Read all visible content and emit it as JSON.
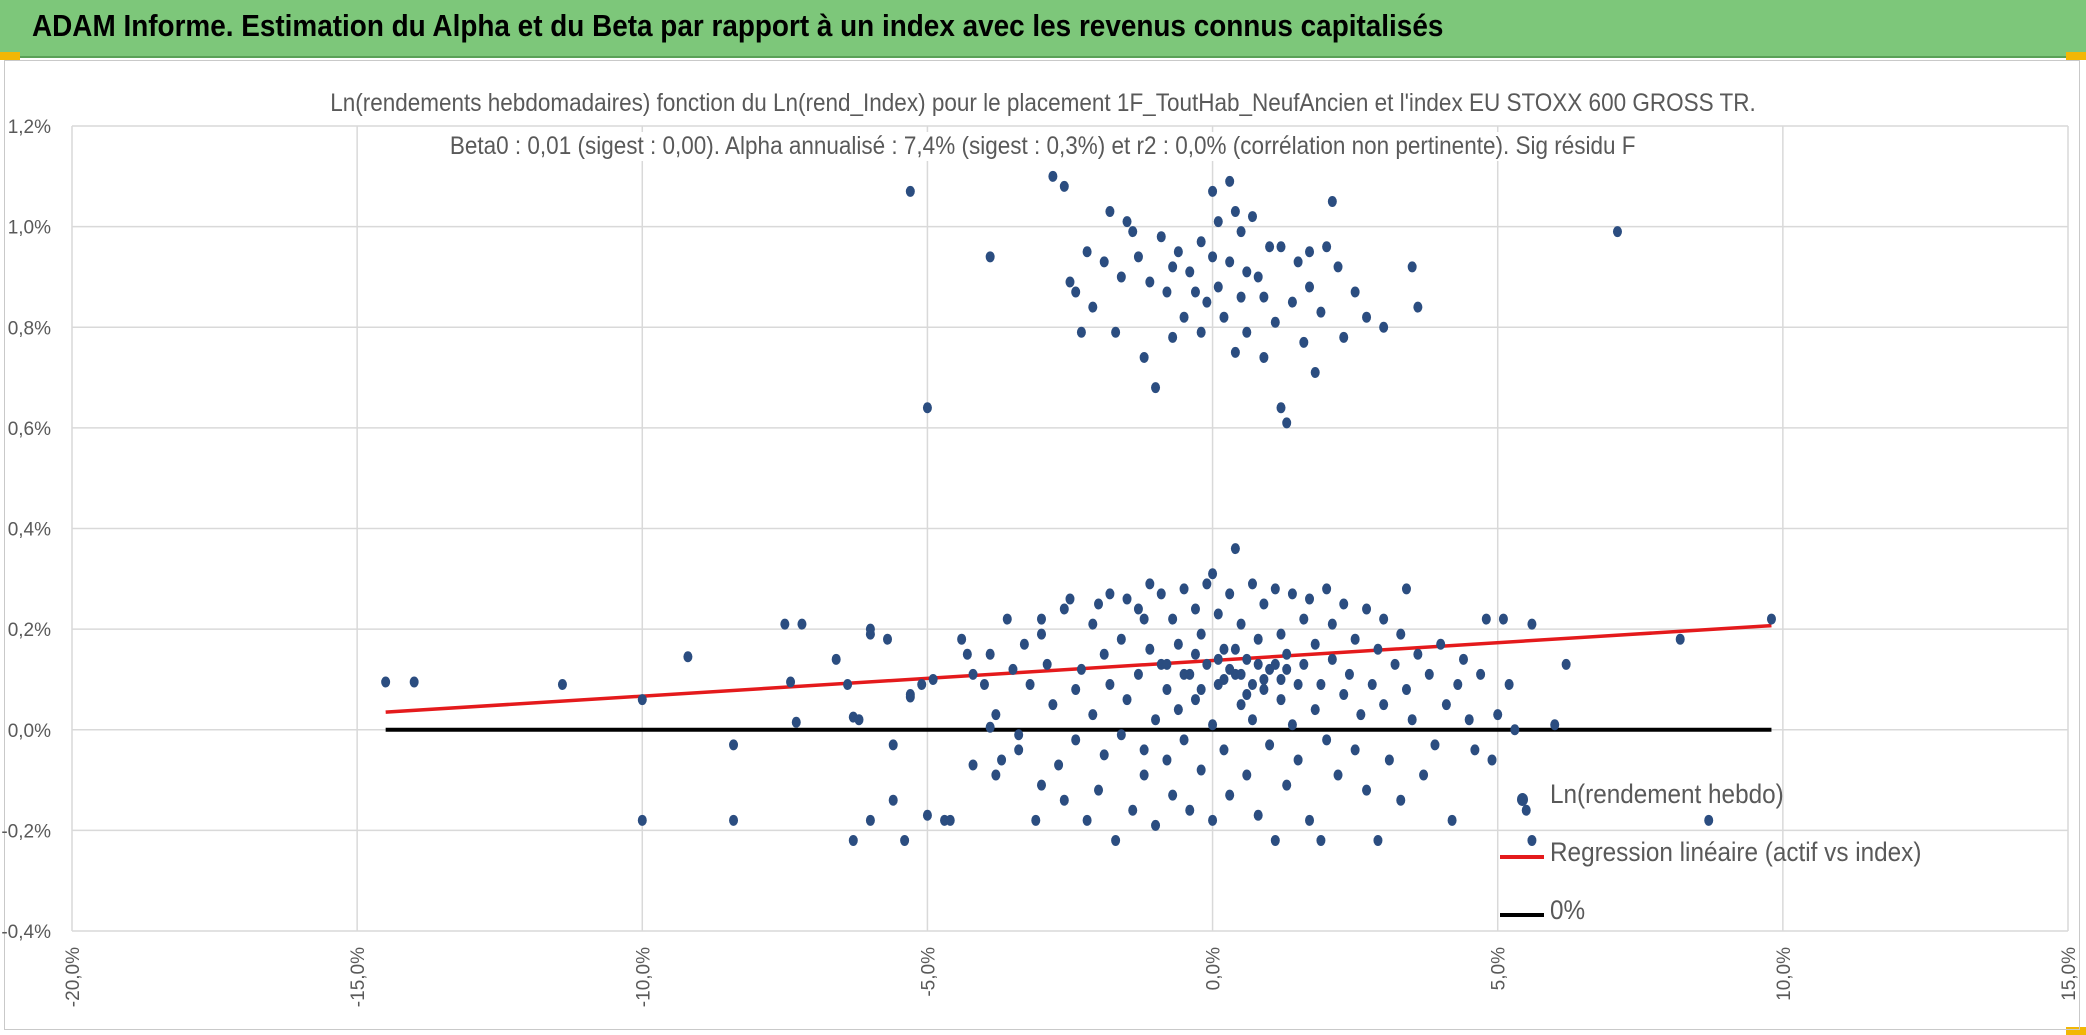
{
  "header": {
    "title": "ADAM Informe. Estimation du Alpha et du Beta par rapport à un index avec les revenus connus capitalisés"
  },
  "colors": {
    "header_bg": "#7dc77a",
    "scatter": "#2b4d80",
    "regression": "#e41a1c",
    "zero_line": "#000000",
    "grid": "#d9d9d9",
    "text": "#595959"
  },
  "chart_data": {
    "type": "scatter",
    "title": "Ln(rendements hebdomadaires) fonction du Ln(rend_Index) pour le placement 1F_ToutHab_NeufAncien et l'index EU STOXX 600 GROSS TR.",
    "subtitle": "Beta0 : 0,01 (sigest : 0,00). Alpha annualisé : 7,4% (sigest : 0,3%) et r2 : 0,0% (corrélation non pertinente). Sig résidu F",
    "xlim": [
      -0.2,
      0.15
    ],
    "ylim": [
      -0.004,
      0.012
    ],
    "x_ticks": [
      "-20,0%",
      "-15,0%",
      "-10,0%",
      "-5,0%",
      "0,0%",
      "5,0%",
      "10,0%",
      "15,0%"
    ],
    "y_ticks": [
      "-0,4%",
      "-0,2%",
      "0,0%",
      "0,2%",
      "0,4%",
      "0,6%",
      "0,8%",
      "1,0%",
      "1,2%"
    ],
    "grid": true,
    "legend_position": "bottom-right",
    "series": [
      {
        "name": "Ln(rendement hebdo)",
        "kind": "scatter",
        "points": [
          [
            -0.145,
            0.00095
          ],
          [
            -0.14,
            0.00095
          ],
          [
            -0.114,
            0.0009
          ],
          [
            -0.1,
            0.0006
          ],
          [
            -0.1,
            -0.0018
          ],
          [
            -0.092,
            0.00145
          ],
          [
            -0.084,
            -0.0003
          ],
          [
            -0.084,
            -0.0018
          ],
          [
            -0.075,
            0.0021
          ],
          [
            -0.072,
            0.0021
          ],
          [
            -0.074,
            0.00095
          ],
          [
            -0.073,
            0.00015
          ],
          [
            -0.066,
            0.0014
          ],
          [
            -0.064,
            0.0009
          ],
          [
            -0.063,
            0.00025
          ],
          [
            -0.062,
            0.0002
          ],
          [
            -0.063,
            -0.0022
          ],
          [
            -0.06,
            0.0019
          ],
          [
            -0.06,
            0.002
          ],
          [
            -0.06,
            -0.0018
          ],
          [
            -0.057,
            0.0018
          ],
          [
            -0.056,
            -0.0003
          ],
          [
            -0.056,
            -0.0014
          ],
          [
            -0.054,
            -0.0022
          ],
          [
            -0.053,
            0.00065
          ],
          [
            -0.053,
            0.0007
          ],
          [
            -0.051,
            0.0009
          ],
          [
            -0.05,
            -0.0017
          ],
          [
            -0.049,
            0.001
          ],
          [
            -0.047,
            -0.0018
          ],
          [
            -0.046,
            -0.0018
          ],
          [
            -0.044,
            0.0018
          ],
          [
            -0.043,
            0.0015
          ],
          [
            -0.042,
            0.0011
          ],
          [
            -0.042,
            -0.0007
          ],
          [
            -0.04,
            0.0009
          ],
          [
            -0.039,
            0.0015
          ],
          [
            -0.039,
            5e-05
          ],
          [
            -0.038,
            0.0003
          ],
          [
            -0.038,
            -0.0009
          ],
          [
            -0.037,
            -0.0006
          ],
          [
            -0.036,
            0.0022
          ],
          [
            -0.035,
            0.0012
          ],
          [
            -0.034,
            -0.0001
          ],
          [
            -0.034,
            -0.0004
          ],
          [
            -0.033,
            0.0017
          ],
          [
            -0.032,
            0.0009
          ],
          [
            -0.031,
            -0.0018
          ],
          [
            -0.03,
            0.0019
          ],
          [
            -0.03,
            -0.0011
          ],
          [
            -0.029,
            0.0013
          ],
          [
            -0.028,
            0.0005
          ],
          [
            -0.027,
            -0.0007
          ],
          [
            -0.026,
            0.0024
          ],
          [
            -0.026,
            -0.0014
          ],
          [
            -0.025,
            0.0026
          ],
          [
            -0.024,
            0.0008
          ],
          [
            -0.024,
            -0.0002
          ],
          [
            -0.023,
            0.0012
          ],
          [
            -0.022,
            -0.0018
          ],
          [
            -0.021,
            0.0021
          ],
          [
            -0.021,
            0.0003
          ],
          [
            -0.02,
            -0.0012
          ],
          [
            -0.019,
            0.0015
          ],
          [
            -0.019,
            -0.0005
          ],
          [
            -0.018,
            0.0027
          ],
          [
            -0.018,
            0.0009
          ],
          [
            -0.017,
            -0.0022
          ],
          [
            -0.016,
            0.0018
          ],
          [
            -0.016,
            -0.0001
          ],
          [
            -0.015,
            0.0026
          ],
          [
            -0.015,
            0.0006
          ],
          [
            -0.014,
            -0.0016
          ],
          [
            -0.013,
            0.0024
          ],
          [
            -0.013,
            0.0011
          ],
          [
            -0.012,
            -0.0004
          ],
          [
            -0.012,
            -0.0009
          ],
          [
            -0.011,
            0.0029
          ],
          [
            -0.011,
            0.0016
          ],
          [
            -0.01,
            0.0002
          ],
          [
            -0.01,
            -0.0019
          ],
          [
            -0.009,
            0.0027
          ],
          [
            -0.009,
            0.0013
          ],
          [
            -0.008,
            -0.0006
          ],
          [
            -0.008,
            0.0008
          ],
          [
            -0.007,
            0.0022
          ],
          [
            -0.007,
            -0.0013
          ],
          [
            -0.006,
            0.0017
          ],
          [
            -0.006,
            0.0004
          ],
          [
            -0.005,
            0.0028
          ],
          [
            -0.005,
            -0.0002
          ],
          [
            -0.004,
            0.0011
          ],
          [
            -0.004,
            -0.0016
          ],
          [
            -0.003,
            0.0024
          ],
          [
            -0.003,
            0.0006
          ],
          [
            -0.002,
            0.0019
          ],
          [
            -0.002,
            -0.0008
          ],
          [
            -0.001,
            0.0029
          ],
          [
            -0.001,
            0.0013
          ],
          [
            0.0,
            0.0001
          ],
          [
            0.0,
            0.0031
          ],
          [
            0.0,
            -0.0018
          ],
          [
            0.001,
            0.0023
          ],
          [
            0.001,
            0.0009
          ],
          [
            0.002,
            -0.0004
          ],
          [
            0.002,
            0.0016
          ],
          [
            0.003,
            0.0027
          ],
          [
            0.003,
            -0.0013
          ],
          [
            0.004,
            0.0011
          ],
          [
            0.004,
            0.0036
          ],
          [
            0.005,
            0.0005
          ],
          [
            0.005,
            0.0021
          ],
          [
            0.006,
            -0.0009
          ],
          [
            0.006,
            0.0014
          ],
          [
            0.007,
            0.0029
          ],
          [
            0.007,
            0.0002
          ],
          [
            0.008,
            -0.0017
          ],
          [
            0.008,
            0.0018
          ],
          [
            0.009,
            0.0008
          ],
          [
            0.009,
            0.0025
          ],
          [
            0.01,
            -0.0003
          ],
          [
            0.01,
            0.0012
          ],
          [
            0.011,
            0.0028
          ],
          [
            0.011,
            -0.0022
          ],
          [
            0.012,
            0.0006
          ],
          [
            0.012,
            0.0019
          ],
          [
            0.013,
            -0.0011
          ],
          [
            0.013,
            0.0015
          ],
          [
            0.014,
            0.0027
          ],
          [
            0.014,
            0.0001
          ],
          [
            0.015,
            0.0009
          ],
          [
            0.015,
            -0.0006
          ],
          [
            0.016,
            0.0022
          ],
          [
            0.016,
            0.0013
          ],
          [
            0.017,
            -0.0018
          ],
          [
            0.017,
            0.0026
          ],
          [
            0.018,
            0.0004
          ],
          [
            0.018,
            0.0017
          ],
          [
            0.019,
            -0.0022
          ],
          [
            0.019,
            0.0009
          ],
          [
            0.02,
            0.0028
          ],
          [
            0.02,
            -0.0002
          ],
          [
            0.021,
            0.0014
          ],
          [
            0.021,
            0.0021
          ],
          [
            0.022,
            -0.0009
          ],
          [
            0.023,
            0.0007
          ],
          [
            0.023,
            0.0025
          ],
          [
            0.024,
            0.0011
          ],
          [
            0.025,
            -0.0004
          ],
          [
            0.025,
            0.0018
          ],
          [
            0.026,
            0.0003
          ],
          [
            0.027,
            0.0024
          ],
          [
            0.027,
            -0.0012
          ],
          [
            0.028,
            0.0009
          ],
          [
            0.029,
            0.0016
          ],
          [
            0.029,
            -0.0022
          ],
          [
            0.03,
            0.0022
          ],
          [
            0.03,
            0.0005
          ],
          [
            0.031,
            -0.0006
          ],
          [
            0.032,
            0.0013
          ],
          [
            0.033,
            0.0019
          ],
          [
            0.033,
            -0.0014
          ],
          [
            0.034,
            0.0008
          ],
          [
            0.035,
            0.0002
          ],
          [
            0.036,
            0.0015
          ],
          [
            0.037,
            -0.0009
          ],
          [
            0.038,
            0.0011
          ],
          [
            0.039,
            -0.0003
          ],
          [
            0.04,
            0.0017
          ],
          [
            0.041,
            0.0005
          ],
          [
            0.042,
            -0.0018
          ],
          [
            0.043,
            0.0009
          ],
          [
            0.044,
            0.0014
          ],
          [
            0.045,
            0.0002
          ],
          [
            0.046,
            -0.0004
          ],
          [
            0.047,
            0.0011
          ],
          [
            0.048,
            0.0022
          ],
          [
            0.049,
            -0.0006
          ],
          [
            0.05,
            0.0003
          ],
          [
            0.051,
            0.0022
          ],
          [
            0.052,
            0.0009
          ],
          [
            0.053,
            0.0
          ],
          [
            0.055,
            -0.0016
          ],
          [
            0.056,
            0.0021
          ],
          [
            0.06,
            0.0001
          ],
          [
            0.062,
            0.0013
          ],
          [
            0.082,
            0.0018
          ],
          [
            0.087,
            -0.0018
          ],
          [
            0.098,
            0.0022
          ],
          [
            0.056,
            -0.0022
          ],
          [
            -0.012,
            0.0022
          ],
          [
            -0.02,
            0.0025
          ],
          [
            -0.03,
            0.0022
          ],
          [
            0.034,
            0.0028
          ],
          [
            -0.005,
            0.0011
          ],
          [
            0.003,
            0.0012
          ],
          [
            0.007,
            0.0009
          ],
          [
            0.011,
            0.0013
          ],
          [
            -0.002,
            0.0008
          ],
          [
            0.001,
            0.0014
          ],
          [
            0.005,
            0.0011
          ],
          [
            0.009,
            0.001
          ],
          [
            0.013,
            0.0012
          ],
          [
            -0.008,
            0.0013
          ],
          [
            0.004,
            0.0016
          ],
          [
            0.006,
            0.0007
          ],
          [
            0.002,
            0.001
          ],
          [
            0.008,
            0.0013
          ],
          [
            -0.003,
            0.0015
          ],
          [
            0.012,
            0.001
          ],
          [
            -0.053,
            0.0107
          ],
          [
            -0.05,
            0.0064
          ],
          [
            -0.039,
            0.0094
          ],
          [
            -0.028,
            0.011
          ],
          [
            -0.026,
            0.0108
          ],
          [
            -0.025,
            0.0089
          ],
          [
            -0.024,
            0.0087
          ],
          [
            -0.023,
            0.0079
          ],
          [
            -0.022,
            0.0095
          ],
          [
            -0.021,
            0.0084
          ],
          [
            -0.019,
            0.0093
          ],
          [
            -0.018,
            0.0103
          ],
          [
            -0.017,
            0.0079
          ],
          [
            -0.016,
            0.009
          ],
          [
            -0.015,
            0.0101
          ],
          [
            -0.013,
            0.0094
          ],
          [
            -0.012,
            0.0074
          ],
          [
            -0.011,
            0.0089
          ],
          [
            -0.01,
            0.0068
          ],
          [
            -0.009,
            0.0098
          ],
          [
            -0.008,
            0.0087
          ],
          [
            -0.007,
            0.0078
          ],
          [
            -0.006,
            0.0095
          ],
          [
            -0.005,
            0.0082
          ],
          [
            -0.004,
            0.0091
          ],
          [
            -0.003,
            0.0087
          ],
          [
            -0.002,
            0.0097
          ],
          [
            -0.001,
            0.0085
          ],
          [
            0.0,
            0.0107
          ],
          [
            0.0,
            0.0094
          ],
          [
            0.001,
            0.0101
          ],
          [
            0.001,
            0.0088
          ],
          [
            0.002,
            0.0082
          ],
          [
            0.003,
            0.0109
          ],
          [
            0.003,
            0.0093
          ],
          [
            0.004,
            0.0075
          ],
          [
            0.005,
            0.0099
          ],
          [
            0.005,
            0.0086
          ],
          [
            0.006,
            0.0079
          ],
          [
            0.007,
            0.0102
          ],
          [
            0.008,
            0.009
          ],
          [
            0.009,
            0.0074
          ],
          [
            0.01,
            0.0096
          ],
          [
            0.011,
            0.0081
          ],
          [
            0.012,
            0.0064
          ],
          [
            0.013,
            0.0061
          ],
          [
            0.014,
            0.0085
          ],
          [
            0.015,
            0.0093
          ],
          [
            0.016,
            0.0077
          ],
          [
            0.017,
            0.0088
          ],
          [
            0.018,
            0.0071
          ],
          [
            0.019,
            0.0083
          ],
          [
            0.02,
            0.0096
          ],
          [
            0.021,
            0.0105
          ],
          [
            0.022,
            0.0092
          ],
          [
            0.023,
            0.0078
          ],
          [
            0.025,
            0.0087
          ],
          [
            0.027,
            0.0082
          ],
          [
            0.03,
            0.008
          ],
          [
            0.035,
            0.0092
          ],
          [
            0.036,
            0.0084
          ],
          [
            0.071,
            0.0099
          ],
          [
            -0.014,
            0.0099
          ],
          [
            -0.007,
            0.0092
          ],
          [
            0.004,
            0.0103
          ],
          [
            0.009,
            0.0086
          ],
          [
            0.012,
            0.0096
          ],
          [
            0.017,
            0.0095
          ],
          [
            -0.002,
            0.0079
          ],
          [
            0.006,
            0.0091
          ]
        ]
      },
      {
        "name": "Regression linéaire (actif vs index)",
        "kind": "line",
        "x": [
          -0.145,
          0.098
        ],
        "y": [
          0.00035,
          0.00207
        ]
      },
      {
        "name": "0%",
        "kind": "line",
        "x": [
          -0.145,
          0.098
        ],
        "y": [
          0.0,
          0.0
        ]
      }
    ]
  }
}
